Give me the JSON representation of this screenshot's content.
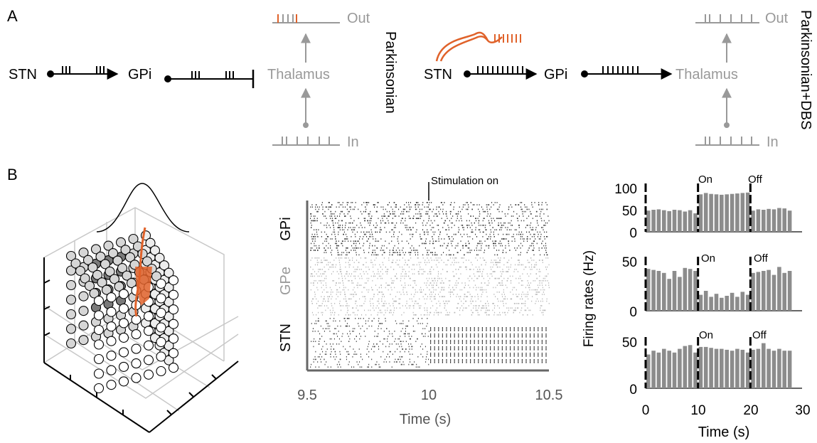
{
  "panel_a": {
    "label": "A",
    "left": {
      "stn": "STN",
      "gpi": "GPi",
      "thalamus": "Thalamus",
      "out": "Out",
      "in": "In",
      "condition": "Parkinsonian"
    },
    "right": {
      "stn": "STN",
      "gpi": "GPi",
      "thalamus": "Thalamus",
      "out": "Out",
      "in": "In",
      "condition": "Parkinsonian+DBS"
    }
  },
  "panel_b": {
    "label": "B",
    "raster": {
      "annotation": "Stimulation on",
      "rows": [
        "GPi",
        "GPe",
        "STN"
      ],
      "xticks": [
        "9.5",
        "10",
        "10.5"
      ],
      "xlabel": "Time (s)"
    },
    "firing": {
      "ylabel": "Firing rates (Hz)",
      "xlabel": "Time (s)",
      "xticks": [
        "0",
        "10",
        "20",
        "30"
      ],
      "on_label": "On",
      "off_label": "Off",
      "colors": {
        "bar": "#8c8c8c",
        "stim": "#e0622a"
      }
    }
  },
  "chart_data": [
    {
      "type": "bar",
      "x": [
        0,
        1,
        2,
        3,
        4,
        5,
        6,
        7,
        8,
        9,
        10,
        11,
        12,
        13,
        14,
        15,
        16,
        17,
        18,
        19,
        20,
        21,
        22,
        23,
        24,
        25,
        26,
        27
      ],
      "values": [
        48,
        50,
        51,
        49,
        47,
        50,
        49,
        46,
        49,
        42,
        85,
        88,
        86,
        85,
        84,
        85,
        86,
        87,
        88,
        89,
        48,
        51,
        50,
        52,
        51,
        54,
        53,
        48
      ],
      "xlim": [
        0,
        30
      ],
      "ylim": [
        0,
        100
      ],
      "yticks": [
        "0",
        "50",
        "100"
      ]
    },
    {
      "type": "bar",
      "x": [
        0,
        1,
        2,
        3,
        4,
        5,
        6,
        7,
        8,
        9,
        10,
        11,
        12,
        13,
        14,
        15,
        16,
        17,
        18,
        19,
        20,
        21,
        22,
        23,
        24,
        25,
        26,
        27
      ],
      "values": [
        42,
        41,
        40,
        38,
        32,
        40,
        34,
        43,
        42,
        40,
        16,
        20,
        14,
        17,
        13,
        15,
        18,
        14,
        19,
        16,
        38,
        39,
        40,
        41,
        36,
        44,
        38,
        40
      ],
      "xlim": [
        0,
        30
      ],
      "ylim": [
        0,
        50
      ],
      "yticks": [
        "0",
        "50"
      ]
    },
    {
      "type": "bar",
      "x": [
        0,
        1,
        2,
        3,
        4,
        5,
        6,
        7,
        8,
        9,
        10,
        11,
        12,
        13,
        14,
        15,
        16,
        17,
        18,
        19,
        20,
        21,
        22,
        23,
        24,
        25,
        26,
        27
      ],
      "values": [
        36,
        40,
        38,
        42,
        40,
        38,
        42,
        45,
        46,
        38,
        44,
        44,
        43,
        42,
        42,
        41,
        40,
        42,
        41,
        38,
        41,
        42,
        48,
        42,
        40,
        42,
        40,
        40
      ],
      "xlim": [
        0,
        30
      ],
      "ylim": [
        0,
        50
      ],
      "yticks": [
        "0",
        "50"
      ]
    }
  ]
}
